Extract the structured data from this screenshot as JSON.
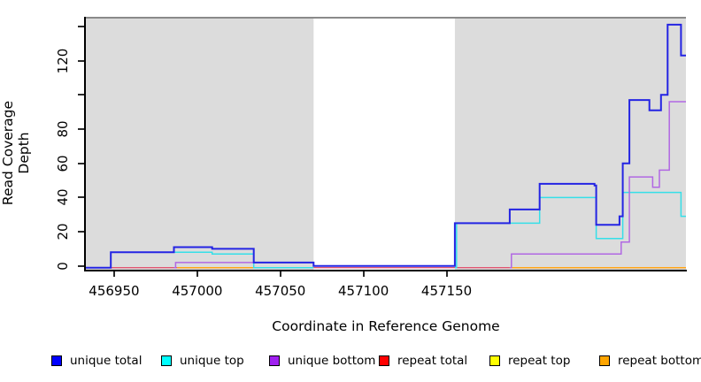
{
  "x_axis": {
    "title": "Coordinate in Reference Genome",
    "ticks": [
      {
        "v": 456950,
        "label": "456950"
      },
      {
        "v": 457000,
        "label": "457000"
      },
      {
        "v": 457050,
        "label": "457050"
      },
      {
        "v": 457100,
        "label": "457100"
      },
      {
        "v": 457150,
        "label": "457150"
      }
    ]
  },
  "y_axis": {
    "title": "Read Coverage Depth",
    "ticks": [
      {
        "v": 0,
        "label": "0"
      },
      {
        "v": 20,
        "label": "20"
      },
      {
        "v": 40,
        "label": "40"
      },
      {
        "v": 60,
        "label": "60"
      },
      {
        "v": 80,
        "label": "80"
      },
      {
        "v": 100,
        "label": ""
      },
      {
        "v": 120,
        "label": "120"
      },
      {
        "v": 140,
        "label": ""
      }
    ]
  },
  "legend": [
    {
      "label": "unique total",
      "color": "#0000FF"
    },
    {
      "label": "unique top",
      "color": "#00FFFF"
    },
    {
      "label": "unique bottom",
      "color": "#A020F0"
    },
    {
      "label": "repeat total",
      "color": "#FF0000"
    },
    {
      "label": "repeat top",
      "color": "#FFFF00"
    },
    {
      "label": "repeat bottom",
      "color": "#FFA500"
    }
  ],
  "chart_data": {
    "type": "line",
    "title": "",
    "xlabel": "Coordinate in Reference Genome",
    "ylabel": "Read Coverage Depth",
    "x_domain": [
      456933,
      457294
    ],
    "y_domain": [
      0,
      147
    ],
    "panel_background": "#dcdcdc",
    "masked_region": {
      "from": 457070,
      "to": 457155,
      "color": "#ffffff"
    },
    "grid": false,
    "legend_position": "bottom",
    "series": [
      {
        "name": "repeat total",
        "color": "#e05570",
        "width": 1.4,
        "segments": [
          [
            [
              456933,
              0
            ],
            [
              457294,
              0
            ]
          ]
        ]
      },
      {
        "name": "repeat top",
        "color": "#f0e43c",
        "width": 1.4,
        "segments": [
          [
            [
              456988,
              0
            ],
            [
              457070,
              0
            ]
          ],
          [
            [
              457188,
              0
            ],
            [
              457294,
              0
            ]
          ]
        ]
      },
      {
        "name": "repeat bottom",
        "color": "#ffa519",
        "width": 1.5,
        "segments": [
          [
            [
              456988,
              0
            ],
            [
              457070,
              0
            ]
          ],
          [
            [
              457188,
              0
            ],
            [
              457294,
              0
            ]
          ]
        ]
      },
      {
        "name": "unique top",
        "color": "#35dfe8",
        "width": 1.5,
        "segments": [
          [
            [
              456933,
              0
            ],
            [
              456948,
              9
            ],
            [
              457009,
              8
            ],
            [
              457034,
              0
            ],
            [
              457070,
              0
            ]
          ],
          [
            [
              457155,
              0
            ],
            [
              457156,
              26
            ],
            [
              457206,
              41
            ],
            [
              457240,
              17
            ],
            [
              457256,
              44
            ],
            [
              457291,
              30
            ],
            [
              457294,
              30
            ]
          ]
        ]
      },
      {
        "name": "unique bottom",
        "color": "#b168e3",
        "width": 1.5,
        "segments": [
          [
            [
              456986,
              0
            ],
            [
              456987,
              3
            ],
            [
              457070,
              3
            ]
          ],
          [
            [
              457188,
              0
            ],
            [
              457189,
              8
            ],
            [
              457255,
              15
            ],
            [
              457260,
              53
            ],
            [
              457274,
              47
            ],
            [
              457278,
              57
            ],
            [
              457284,
              97
            ],
            [
              457294,
              97
            ]
          ]
        ]
      },
      {
        "name": "unique total",
        "color": "#2424e3",
        "width": 2,
        "segments": [
          [
            [
              456933,
              0
            ],
            [
              456948,
              9
            ],
            [
              456986,
              12
            ],
            [
              457009,
              11
            ],
            [
              457034,
              3
            ],
            [
              457070,
              1
            ],
            [
              457155,
              26
            ],
            [
              457188,
              34
            ],
            [
              457206,
              49
            ],
            [
              457239,
              48
            ],
            [
              457240,
              25
            ],
            [
              457254,
              30
            ],
            [
              457256,
              61
            ],
            [
              457260,
              98
            ],
            [
              457272,
              92
            ],
            [
              457279,
              101
            ],
            [
              457283,
              142
            ],
            [
              457291,
              124
            ],
            [
              457294,
              124
            ]
          ]
        ]
      }
    ]
  }
}
